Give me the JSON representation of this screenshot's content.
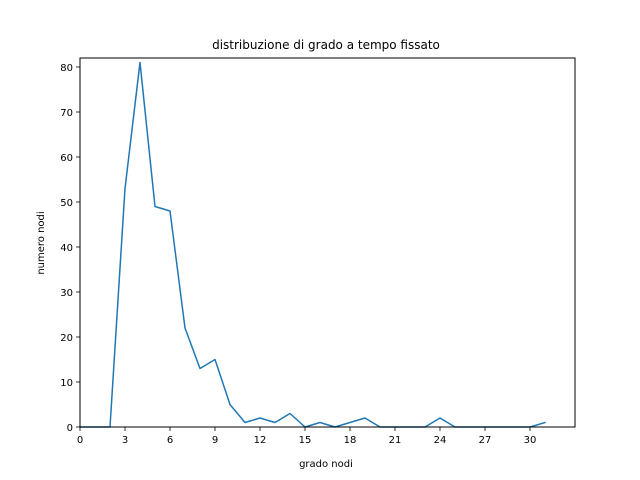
{
  "chart_data": {
    "type": "line",
    "title": "distribuzione di grado a tempo fissato",
    "xlabel": "grado nodi",
    "ylabel": "numero nodi",
    "xlim": [
      0,
      33
    ],
    "ylim": [
      0,
      82
    ],
    "xticks": [
      0,
      3,
      6,
      9,
      12,
      15,
      18,
      21,
      24,
      27,
      30
    ],
    "yticks": [
      0,
      10,
      20,
      30,
      40,
      50,
      60,
      70,
      80
    ],
    "grid": false,
    "legend": "none",
    "series": [
      {
        "color": "#1f77b4",
        "x": [
          0,
          1,
          2,
          3,
          4,
          5,
          6,
          7,
          8,
          9,
          10,
          11,
          12,
          13,
          14,
          15,
          16,
          17,
          18,
          19,
          20,
          21,
          22,
          23,
          24,
          25,
          26,
          27,
          28,
          29,
          30,
          31
        ],
        "y": [
          0,
          0,
          0,
          53,
          81,
          49,
          48,
          22,
          13,
          15,
          5,
          1,
          2,
          1,
          3,
          0,
          1,
          0,
          1,
          2,
          0,
          0,
          0,
          0,
          2,
          0,
          0,
          0,
          0,
          0,
          0,
          1
        ]
      }
    ]
  }
}
